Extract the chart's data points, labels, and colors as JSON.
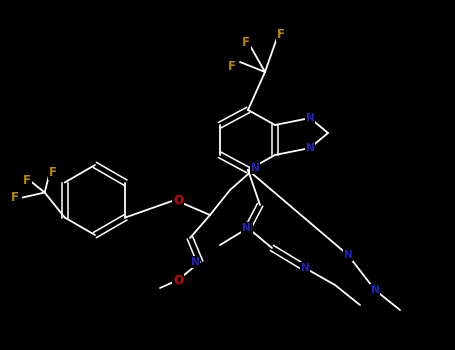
{
  "background": "#000000",
  "white": "#ffffff",
  "blue": "#2222bb",
  "orange": "#bb8800",
  "red": "#cc0000",
  "figsize": [
    4.55,
    3.5
  ],
  "dpi": 100,
  "xlim": [
    0,
    455
  ],
  "ylim": [
    0,
    350
  ]
}
